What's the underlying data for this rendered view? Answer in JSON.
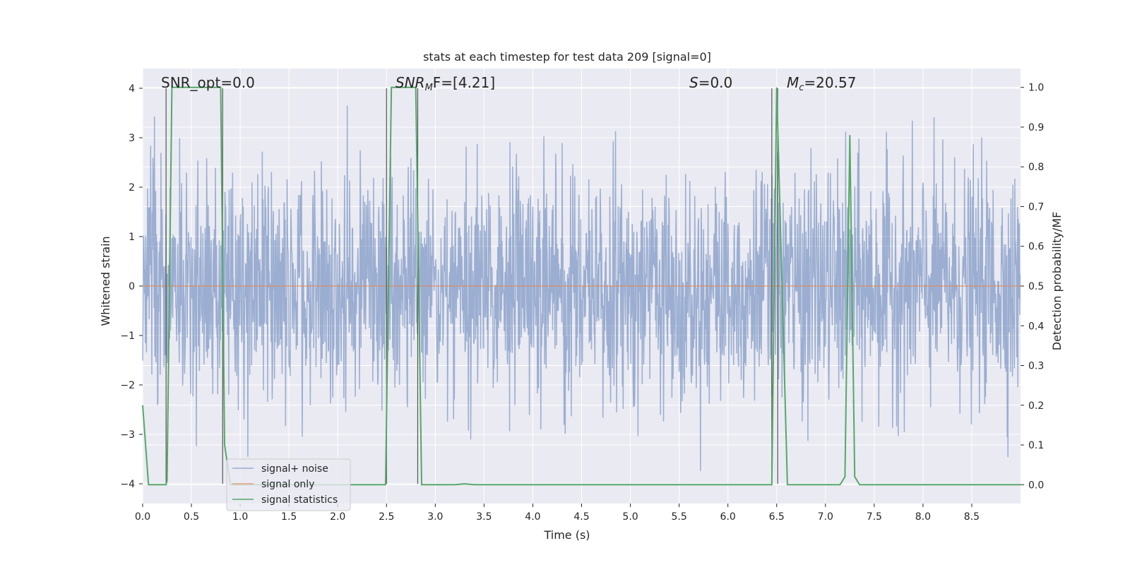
{
  "chart_data": {
    "type": "line",
    "title": "stats at each timestep for test data 209 [signal=0]",
    "xlabel": "Time (s)",
    "ylabel": "Whitened strain",
    "y2label": "Detection probability/MF",
    "xlim": [
      0.0,
      9.0
    ],
    "ylim": [
      -4.4,
      4.4
    ],
    "y2lim": [
      -0.0475,
      1.0475
    ],
    "xticks": [
      "0.0",
      "0.5",
      "1.0",
      "1.5",
      "2.0",
      "2.5",
      "3.0",
      "3.5",
      "4.0",
      "4.5",
      "5.0",
      "5.5",
      "6.0",
      "6.5",
      "7.0",
      "7.5",
      "8.0",
      "8.5"
    ],
    "yticks": [
      "4",
      "3",
      "2",
      "1",
      "0",
      "−1",
      "−2",
      "−3",
      "−4"
    ],
    "y2ticks": [
      "1.0",
      "0.9",
      "0.8",
      "0.7",
      "0.6",
      "0.5",
      "0.4",
      "0.3",
      "0.2",
      "0.1",
      "0.0"
    ],
    "annotations": {
      "snr_opt": "SNR_opt=0.0",
      "snr_mf_sym": "SNR",
      "snr_mf_sub": "M",
      "snr_mf_rest": "F=[4.21]",
      "s_sym": "S",
      "s_rest": "=0.0",
      "mc_sym": "M",
      "mc_sub": "c",
      "mc_rest": "=20.57"
    },
    "legend": {
      "placement": "lower-left",
      "entries": [
        "signal+ noise",
        "signal only",
        "signal statistics"
      ]
    },
    "series": [
      {
        "name": "signal+ noise",
        "color": "#4c72b0",
        "kind": "noise",
        "amplitude_sigma": 1.0,
        "duration": 9.0,
        "sample_rate": 256
      },
      {
        "name": "signal only",
        "color": "#dd8452",
        "kind": "constant",
        "value": 0.0
      },
      {
        "name": "signal statistics",
        "color": "#55a868",
        "axis": "right",
        "x": [
          0.0,
          0.06,
          0.24,
          0.25,
          0.3,
          0.8,
          0.84,
          0.9,
          2.49,
          2.55,
          2.8,
          2.86,
          3.0,
          3.2,
          3.3,
          3.4,
          6.45,
          6.5,
          6.61,
          7.15,
          7.2,
          7.25,
          7.3,
          7.35,
          9.0
        ],
        "y": [
          0.2,
          0.0,
          0.0,
          0.01,
          1.0,
          1.0,
          0.1,
          0.0,
          0.0,
          1.0,
          1.0,
          0.0,
          0.0,
          0.0,
          0.002,
          0.0,
          0.0,
          1.0,
          0.0,
          0.0,
          0.02,
          0.88,
          0.02,
          0.0,
          0.0
        ]
      }
    ],
    "vlines": [
      0.24,
      0.82,
      2.5,
      2.82,
      6.45,
      6.51
    ],
    "colors": {
      "plot_bg": "#eaeaf2",
      "grid": "#ffffff",
      "vline": "#555555"
    }
  }
}
